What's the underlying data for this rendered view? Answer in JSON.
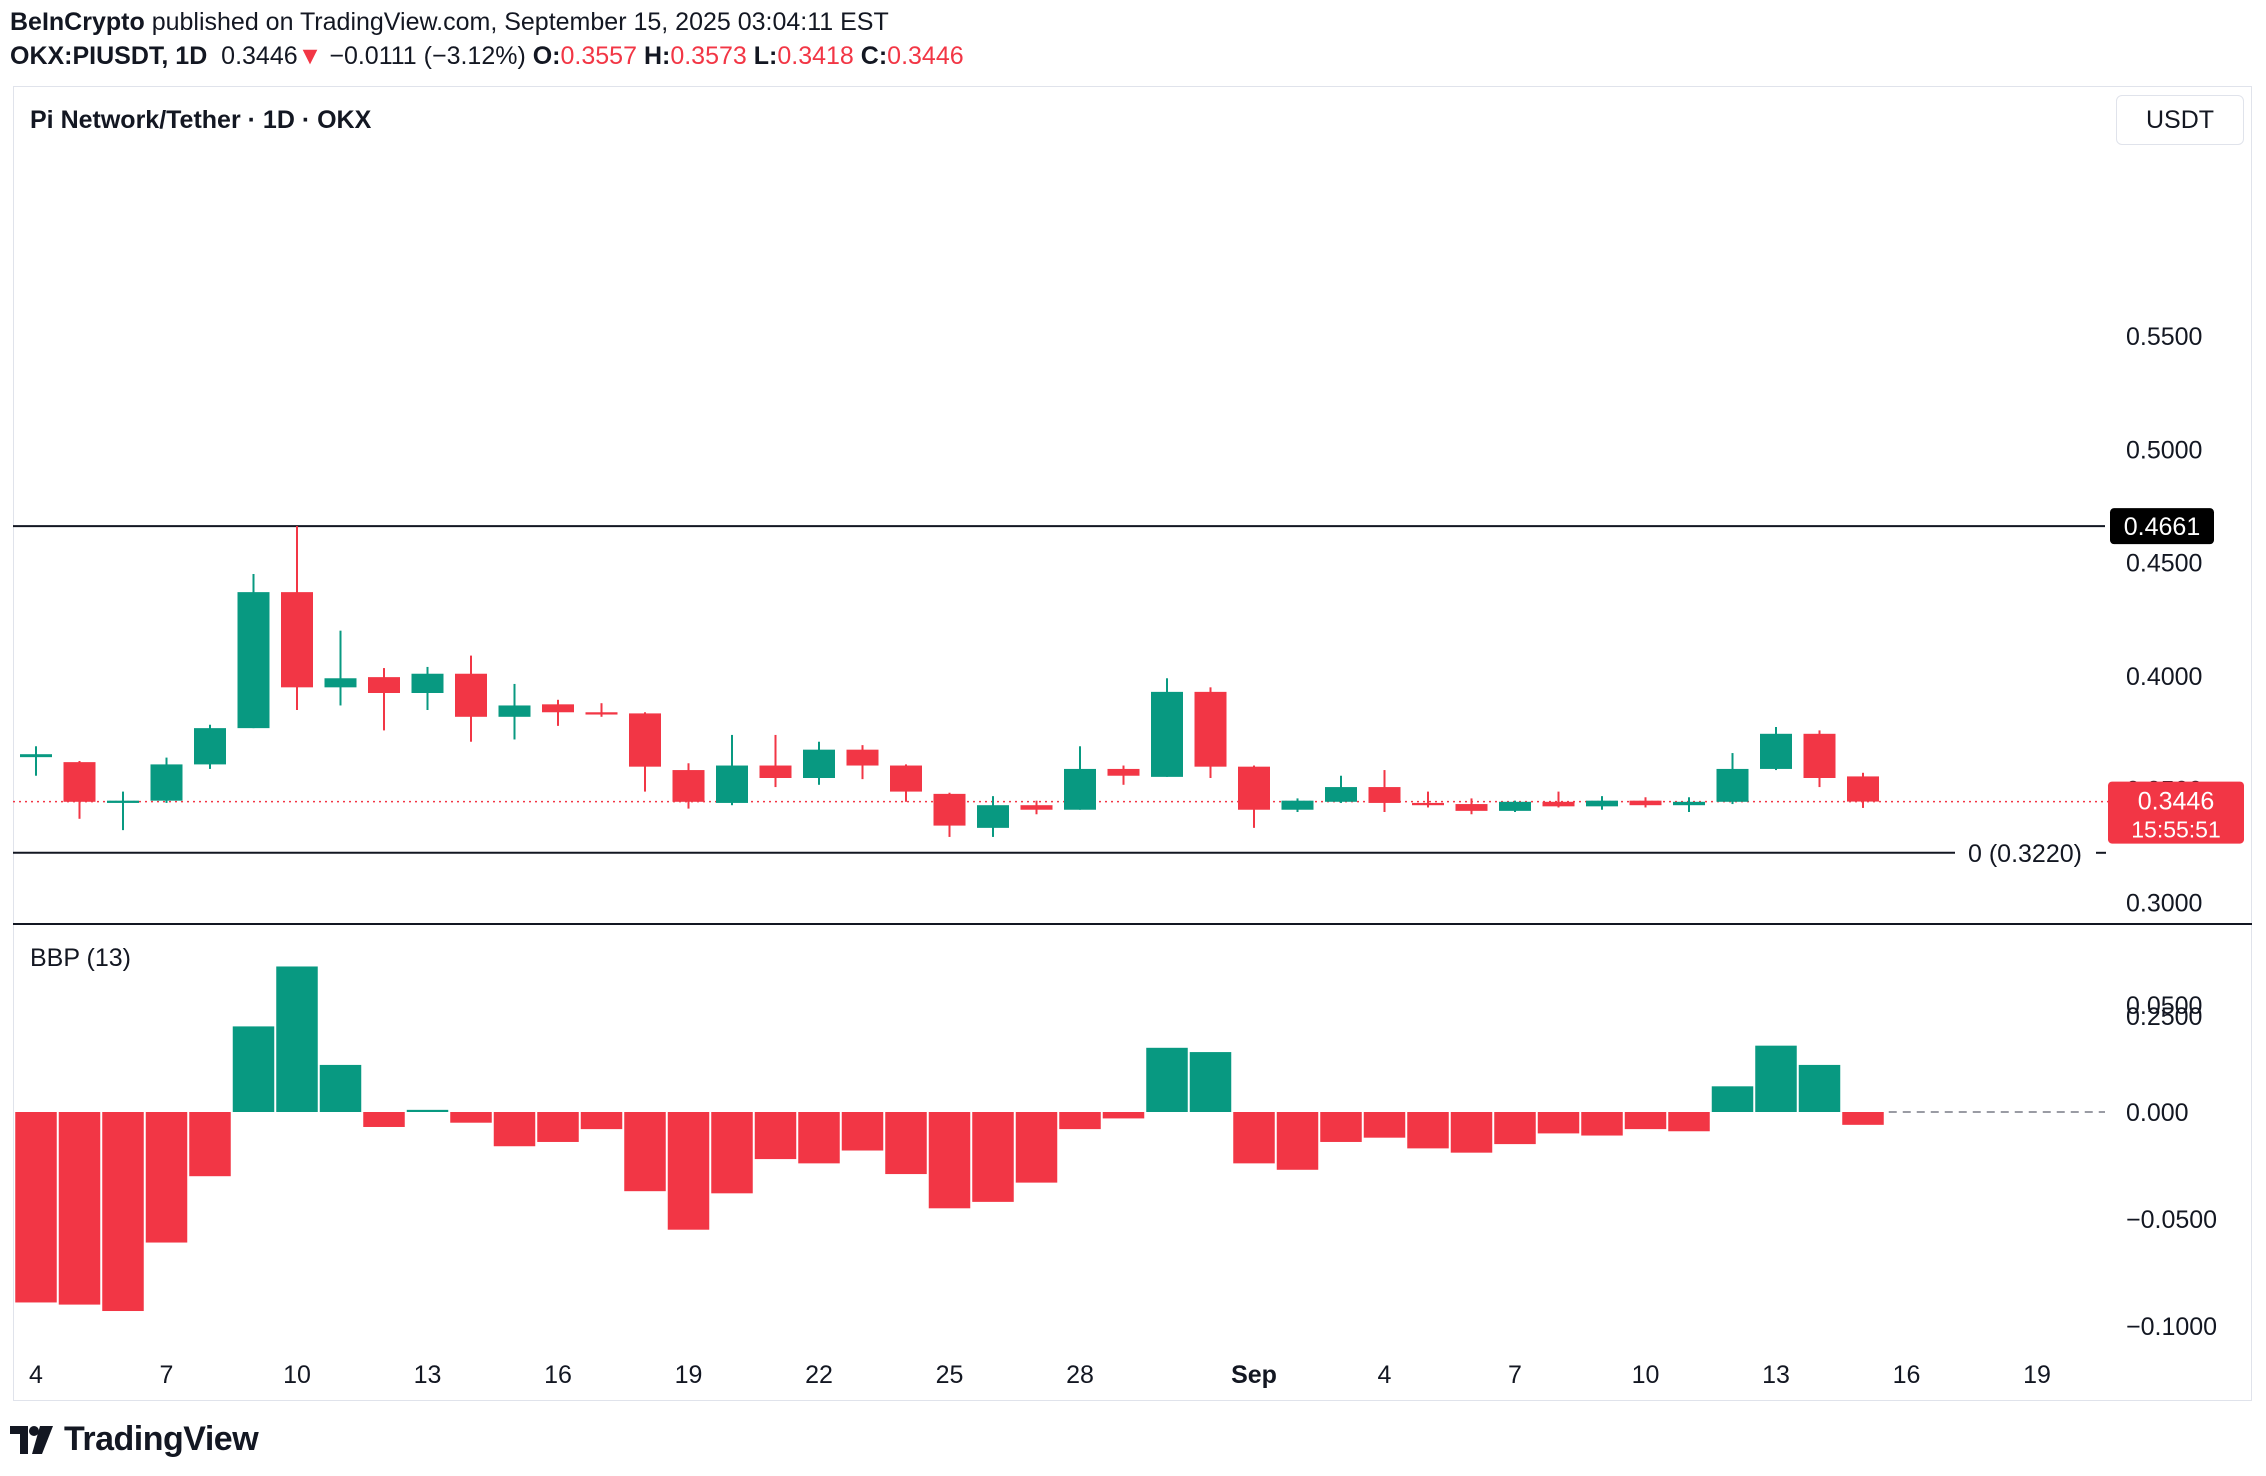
{
  "header": {
    "publisher": "BeInCrypto",
    "published_text": "published on TradingView.com, September 15, 2025 03:04:11 EST",
    "symbol": "OKX:PIUSDT, 1D",
    "last": "0.3446",
    "change_arrow": "▼",
    "change": "−0.0111 (−3.12%)",
    "o_label": "O:",
    "o_value": "0.3557",
    "h_label": "H:",
    "h_value": "0.3573",
    "l_label": "L:",
    "l_value": "0.3418",
    "c_label": "C:",
    "c_value": "0.3446"
  },
  "pane_title": "Pi Network/Tether · 1D · OKX",
  "currency_button": "USDT",
  "indicator_title": "BBP (13)",
  "footer": {
    "logo_text": "TradingView",
    "logo_icon": "tradingview-logo-icon"
  },
  "colors": {
    "up": "#089981",
    "down": "#f23645",
    "text": "#131722",
    "grid_border": "#e0e3eb"
  },
  "chart_data": [
    {
      "type": "candlestick",
      "symbol": "PIUSDT",
      "interval": "1D",
      "price_axis_ticks": [
        0.55,
        0.5,
        0.45,
        0.4,
        0.35,
        0.3,
        0.25
      ],
      "ylim": [
        0.21,
        0.58
      ],
      "x_tick_labels": [
        {
          "index": 0,
          "label": "4"
        },
        {
          "index": 3,
          "label": "7"
        },
        {
          "index": 6,
          "label": "10"
        },
        {
          "index": 9,
          "label": "13"
        },
        {
          "index": 12,
          "label": "16"
        },
        {
          "index": 15,
          "label": "19"
        },
        {
          "index": 18,
          "label": "22"
        },
        {
          "index": 21,
          "label": "25"
        },
        {
          "index": 24,
          "label": "28"
        },
        {
          "index": 28,
          "label": "Sep"
        },
        {
          "index": 31,
          "label": "4"
        },
        {
          "index": 34,
          "label": "7"
        },
        {
          "index": 37,
          "label": "10"
        },
        {
          "index": 40,
          "label": "13"
        },
        {
          "index": 43,
          "label": "16"
        },
        {
          "index": 46,
          "label": "19"
        }
      ],
      "candles": [
        {
          "o": 0.3642,
          "h": 0.369,
          "l": 0.356,
          "c": 0.3655
        },
        {
          "o": 0.362,
          "h": 0.3625,
          "l": 0.337,
          "c": 0.3445
        },
        {
          "o": 0.344,
          "h": 0.349,
          "l": 0.332,
          "c": 0.345
        },
        {
          "o": 0.345,
          "h": 0.364,
          "l": 0.344,
          "c": 0.361
        },
        {
          "o": 0.361,
          "h": 0.3785,
          "l": 0.359,
          "c": 0.377
        },
        {
          "o": 0.377,
          "h": 0.445,
          "l": 0.377,
          "c": 0.437
        },
        {
          "o": 0.437,
          "h": 0.4661,
          "l": 0.385,
          "c": 0.395
        },
        {
          "o": 0.395,
          "h": 0.42,
          "l": 0.387,
          "c": 0.399
        },
        {
          "o": 0.3995,
          "h": 0.4035,
          "l": 0.376,
          "c": 0.3925
        },
        {
          "o": 0.3925,
          "h": 0.404,
          "l": 0.385,
          "c": 0.401
        },
        {
          "o": 0.401,
          "h": 0.409,
          "l": 0.371,
          "c": 0.382
        },
        {
          "o": 0.382,
          "h": 0.3965,
          "l": 0.372,
          "c": 0.387
        },
        {
          "o": 0.3875,
          "h": 0.3895,
          "l": 0.378,
          "c": 0.384
        },
        {
          "o": 0.384,
          "h": 0.388,
          "l": 0.382,
          "c": 0.383
        },
        {
          "o": 0.3835,
          "h": 0.384,
          "l": 0.349,
          "c": 0.36
        },
        {
          "o": 0.3585,
          "h": 0.3615,
          "l": 0.3415,
          "c": 0.3445
        },
        {
          "o": 0.344,
          "h": 0.374,
          "l": 0.343,
          "c": 0.3605
        },
        {
          "o": 0.3605,
          "h": 0.374,
          "l": 0.351,
          "c": 0.355
        },
        {
          "o": 0.355,
          "h": 0.371,
          "l": 0.352,
          "c": 0.3675
        },
        {
          "o": 0.3675,
          "h": 0.3695,
          "l": 0.3545,
          "c": 0.3605
        },
        {
          "o": 0.3605,
          "h": 0.361,
          "l": 0.3445,
          "c": 0.349
        },
        {
          "o": 0.348,
          "h": 0.3485,
          "l": 0.329,
          "c": 0.334
        },
        {
          "o": 0.333,
          "h": 0.347,
          "l": 0.329,
          "c": 0.343
        },
        {
          "o": 0.343,
          "h": 0.345,
          "l": 0.339,
          "c": 0.341
        },
        {
          "o": 0.341,
          "h": 0.369,
          "l": 0.341,
          "c": 0.359
        },
        {
          "o": 0.359,
          "h": 0.3605,
          "l": 0.352,
          "c": 0.356
        },
        {
          "o": 0.3555,
          "h": 0.399,
          "l": 0.3555,
          "c": 0.393
        },
        {
          "o": 0.393,
          "h": 0.395,
          "l": 0.355,
          "c": 0.36
        },
        {
          "o": 0.36,
          "h": 0.3605,
          "l": 0.333,
          "c": 0.341
        },
        {
          "o": 0.341,
          "h": 0.346,
          "l": 0.34,
          "c": 0.345
        },
        {
          "o": 0.3445,
          "h": 0.356,
          "l": 0.344,
          "c": 0.351
        },
        {
          "o": 0.351,
          "h": 0.3585,
          "l": 0.34,
          "c": 0.344
        },
        {
          "o": 0.344,
          "h": 0.349,
          "l": 0.342,
          "c": 0.343
        },
        {
          "o": 0.3435,
          "h": 0.346,
          "l": 0.339,
          "c": 0.3405
        },
        {
          "o": 0.3405,
          "h": 0.345,
          "l": 0.34,
          "c": 0.3445
        },
        {
          "o": 0.3445,
          "h": 0.349,
          "l": 0.342,
          "c": 0.3425
        },
        {
          "o": 0.3425,
          "h": 0.347,
          "l": 0.341,
          "c": 0.345
        },
        {
          "o": 0.345,
          "h": 0.3465,
          "l": 0.342,
          "c": 0.343
        },
        {
          "o": 0.343,
          "h": 0.3465,
          "l": 0.34,
          "c": 0.3445
        },
        {
          "o": 0.3445,
          "h": 0.366,
          "l": 0.3435,
          "c": 0.359
        },
        {
          "o": 0.359,
          "h": 0.3775,
          "l": 0.3585,
          "c": 0.3745
        },
        {
          "o": 0.3745,
          "h": 0.376,
          "l": 0.351,
          "c": 0.355
        },
        {
          "o": 0.3557,
          "h": 0.3573,
          "l": 0.3418,
          "c": 0.3446
        }
      ],
      "levels": [
        {
          "value": 0.4661,
          "label": "0.4661"
        },
        {
          "value": 0.322,
          "label": "0 (0.3220)"
        }
      ],
      "last_price_label": "0.3446",
      "countdown_label": "15:55:51"
    },
    {
      "type": "bar",
      "name": "BBP (13)",
      "value_axis_ticks": [
        0.05,
        0.0,
        -0.05,
        -0.1
      ],
      "tick_labels": [
        "0.0500",
        "0.000",
        "−0.0500",
        "−0.1000"
      ],
      "ylim": [
        -0.118,
        0.078
      ],
      "values": [
        -0.089,
        -0.09,
        -0.093,
        -0.061,
        -0.03,
        0.04,
        0.068,
        0.022,
        -0.007,
        0.001,
        -0.005,
        -0.016,
        -0.014,
        -0.008,
        -0.037,
        -0.055,
        -0.038,
        -0.022,
        -0.024,
        -0.018,
        -0.029,
        -0.045,
        -0.042,
        -0.033,
        -0.008,
        -0.003,
        0.03,
        0.028,
        -0.024,
        -0.027,
        -0.014,
        -0.012,
        -0.017,
        -0.019,
        -0.015,
        -0.01,
        -0.011,
        -0.008,
        -0.009,
        0.012,
        0.031,
        0.022,
        -0.006
      ]
    }
  ]
}
